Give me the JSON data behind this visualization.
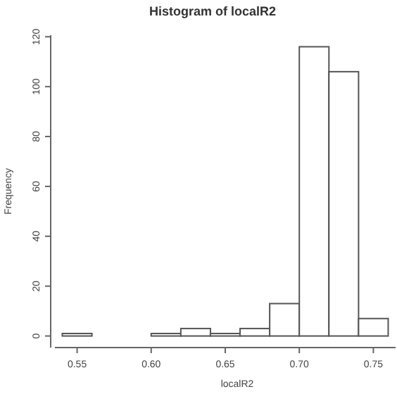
{
  "chart_data": {
    "type": "histogram",
    "title": "Histogram of localR2",
    "xlabel": "localR2",
    "ylabel": "Frequency",
    "bins": [
      0.54,
      0.56,
      0.58,
      0.6,
      0.62,
      0.64,
      0.66,
      0.68,
      0.7,
      0.72,
      0.74,
      0.76
    ],
    "values": [
      1,
      0,
      0,
      1,
      3,
      1,
      3,
      13,
      116,
      106,
      7
    ],
    "color": "#ffffff",
    "xlim": [
      0.535,
      0.765
    ],
    "xticks": [
      {
        "value": 0.55,
        "label": "0.55"
      },
      {
        "value": 0.6,
        "label": "0.60"
      },
      {
        "value": 0.65,
        "label": "0.65"
      },
      {
        "value": 0.7,
        "label": "0.70"
      },
      {
        "value": 0.75,
        "label": "0.75"
      }
    ],
    "ylim": [
      -4.64,
      120.64
    ],
    "yticks": [
      0,
      20,
      40,
      60,
      80,
      100,
      120
    ],
    "grid": false
  }
}
